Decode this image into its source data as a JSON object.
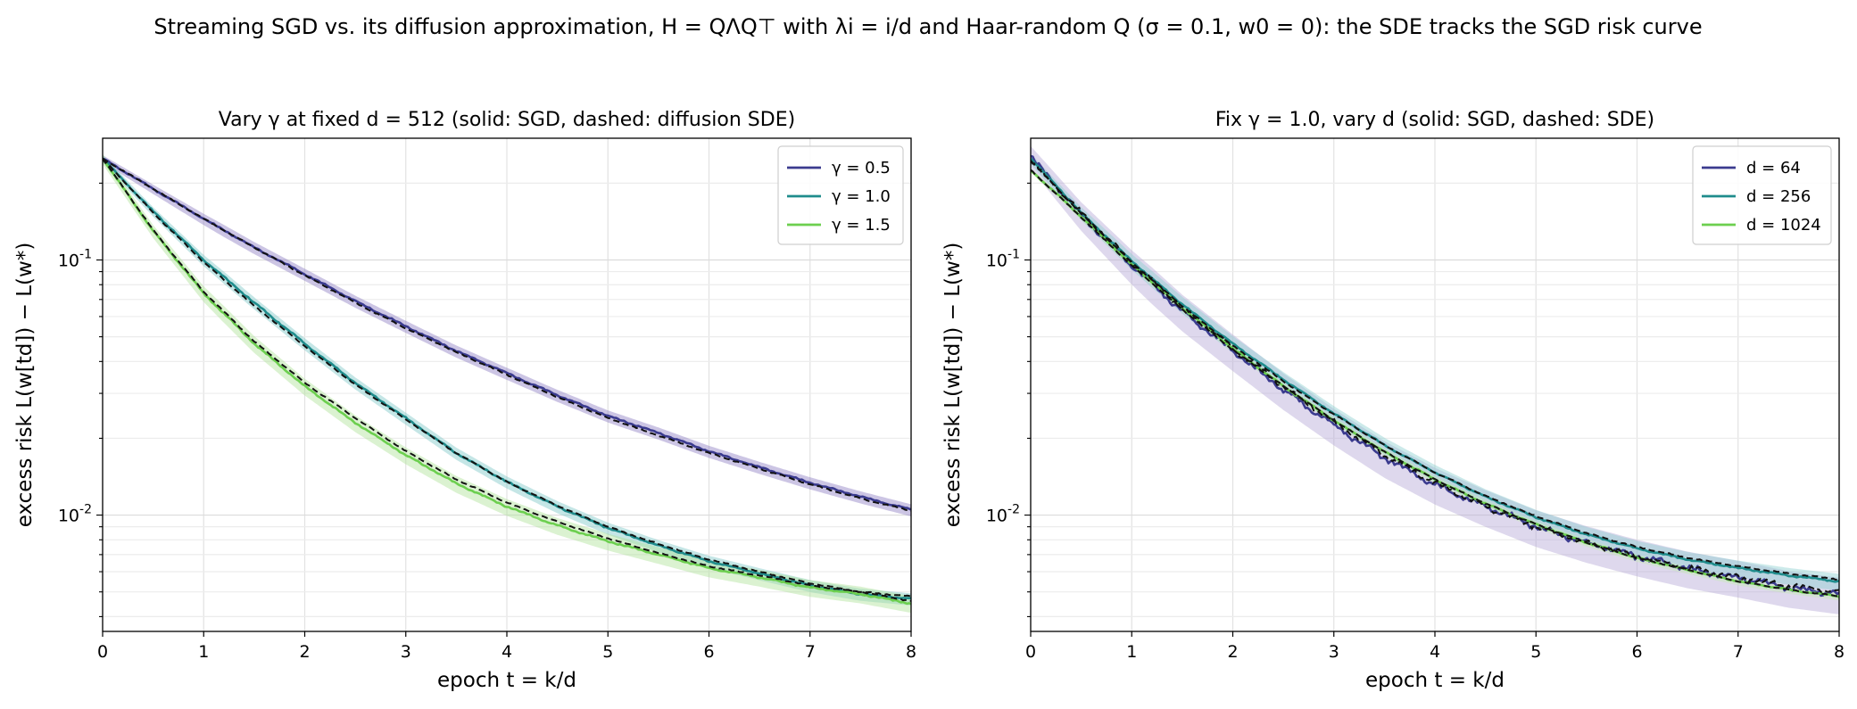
{
  "figure": {
    "suptitle": "Streaming SGD vs. its diffusion approximation, H = QΛQ⊤ with λi = i/d and Haar-random Q (σ = 0.1, w0 = 0): the SDE tracks the SGD risk curve"
  },
  "chart_data": [
    {
      "type": "line",
      "title": "Vary γ at fixed d = 512 (solid: SGD, dashed: diffusion SDE)",
      "xlabel": "epoch t = k/d",
      "ylabel": "excess risk L(w[td]) − L(w*)",
      "xlim": [
        0,
        8
      ],
      "ylim": [
        0.0035,
        0.3
      ],
      "yscale": "log",
      "grid": true,
      "legend_position": "top-right",
      "x_ticks": [
        "0",
        "1",
        "2",
        "3",
        "4",
        "5",
        "6",
        "7",
        "8"
      ],
      "y_ticks": [
        "10^-2",
        "10^-1"
      ],
      "series": [
        {
          "name": "γ = 0.5",
          "color": "#3b3b8f",
          "band_color": "#8f7fc4",
          "band": 0.05,
          "x": [
            0,
            0.5,
            1,
            1.5,
            2,
            2.5,
            3,
            3.5,
            4,
            4.5,
            5,
            5.5,
            6,
            6.5,
            7,
            7.5,
            8
          ],
          "sgd": [
            0.25,
            0.19,
            0.145,
            0.112,
            0.088,
            0.069,
            0.055,
            0.044,
            0.036,
            0.0295,
            0.0245,
            0.021,
            0.0178,
            0.0154,
            0.0134,
            0.0118,
            0.0105
          ],
          "sde": [
            0.25,
            0.19,
            0.145,
            0.112,
            0.087,
            0.068,
            0.054,
            0.0435,
            0.0355,
            0.029,
            0.024,
            0.0205,
            0.0175,
            0.0152,
            0.0132,
            0.0116,
            0.0104
          ]
        },
        {
          "name": "γ = 1.0",
          "color": "#1f8c8c",
          "band_color": "#7fc8c8",
          "band": 0.05,
          "x": [
            0,
            0.5,
            1,
            1.5,
            2,
            2.5,
            3,
            3.5,
            4,
            4.5,
            5,
            5.5,
            6,
            6.5,
            7,
            7.5,
            8
          ],
          "sgd": [
            0.25,
            0.155,
            0.1,
            0.068,
            0.047,
            0.033,
            0.024,
            0.0175,
            0.0135,
            0.0108,
            0.0089,
            0.0076,
            0.0066,
            0.0059,
            0.0053,
            0.0049,
            0.0047
          ],
          "sde": [
            0.25,
            0.153,
            0.098,
            0.066,
            0.046,
            0.0325,
            0.0237,
            0.0175,
            0.0135,
            0.0109,
            0.009,
            0.0077,
            0.0067,
            0.006,
            0.0054,
            0.005,
            0.0048
          ]
        },
        {
          "name": "γ = 1.5",
          "color": "#6ccf4f",
          "band_color": "#b0e39a",
          "band": 0.07,
          "x": [
            0,
            0.5,
            1,
            1.5,
            2,
            2.5,
            3,
            3.5,
            4,
            4.5,
            5,
            5.5,
            6,
            6.5,
            7,
            7.5,
            8
          ],
          "sgd": [
            0.25,
            0.13,
            0.074,
            0.047,
            0.032,
            0.023,
            0.0172,
            0.0133,
            0.0108,
            0.0091,
            0.0079,
            0.007,
            0.0062,
            0.0057,
            0.0052,
            0.0049,
            0.0045
          ],
          "sde": [
            0.25,
            0.131,
            0.075,
            0.048,
            0.033,
            0.024,
            0.0178,
            0.0138,
            0.0112,
            0.0094,
            0.0081,
            0.0071,
            0.0063,
            0.0058,
            0.0053,
            0.005,
            0.0046
          ]
        }
      ]
    },
    {
      "type": "line",
      "title": "Fix γ = 1.0, vary d (solid: SGD, dashed: SDE)",
      "xlabel": "epoch t = k/d",
      "ylabel": "excess risk L(w[td]) − L(w*)",
      "xlim": [
        0,
        8
      ],
      "ylim": [
        0.0035,
        0.3
      ],
      "yscale": "log",
      "grid": true,
      "legend_position": "top-right",
      "x_ticks": [
        "0",
        "1",
        "2",
        "3",
        "4",
        "5",
        "6",
        "7",
        "8"
      ],
      "y_ticks": [
        "10^-2",
        "10^-1"
      ],
      "series": [
        {
          "name": "d = 64",
          "color": "#3b3b8f",
          "band_color": "#b5a8d8",
          "band": 0.16,
          "x": [
            0,
            0.5,
            1,
            1.5,
            2,
            2.5,
            3,
            3.5,
            4,
            4.5,
            5,
            5.5,
            6,
            6.5,
            7,
            7.5,
            8
          ],
          "sgd": [
            0.255,
            0.15,
            0.095,
            0.063,
            0.044,
            0.031,
            0.0225,
            0.0168,
            0.0132,
            0.0108,
            0.009,
            0.0078,
            0.0069,
            0.0062,
            0.0057,
            0.0052,
            0.0049
          ],
          "sde": [
            0.245,
            0.153,
            0.098,
            0.065,
            0.045,
            0.032,
            0.0232,
            0.0172,
            0.0134,
            0.0108,
            0.009,
            0.0078,
            0.0069,
            0.0062,
            0.0057,
            0.0053,
            0.005
          ]
        },
        {
          "name": "d = 256",
          "color": "#1f8c8c",
          "band_color": "#8fd0d0",
          "band": 0.07,
          "x": [
            0,
            0.5,
            1,
            1.5,
            2,
            2.5,
            3,
            3.5,
            4,
            4.5,
            5,
            5.5,
            6,
            6.5,
            7,
            7.5,
            8
          ],
          "sgd": [
            0.25,
            0.153,
            0.099,
            0.067,
            0.047,
            0.034,
            0.025,
            0.0188,
            0.0147,
            0.0118,
            0.0098,
            0.0084,
            0.0074,
            0.0067,
            0.0062,
            0.0058,
            0.0055
          ],
          "sde": [
            0.245,
            0.152,
            0.098,
            0.066,
            0.046,
            0.0335,
            0.0248,
            0.0188,
            0.0147,
            0.0119,
            0.0099,
            0.0085,
            0.0075,
            0.0068,
            0.0063,
            0.0059,
            0.0056
          ]
        },
        {
          "name": "d = 1024",
          "color": "#6ccf4f",
          "band_color": "#c5eab5",
          "band": 0.03,
          "x": [
            0,
            0.5,
            1,
            1.5,
            2,
            2.5,
            3,
            3.5,
            4,
            4.5,
            5,
            5.5,
            6,
            6.5,
            7,
            7.5,
            8
          ],
          "sgd": [
            0.225,
            0.148,
            0.096,
            0.065,
            0.045,
            0.032,
            0.0235,
            0.0177,
            0.0138,
            0.0111,
            0.0092,
            0.0078,
            0.0068,
            0.0061,
            0.0055,
            0.0051,
            0.0048
          ],
          "sde": [
            0.225,
            0.147,
            0.095,
            0.064,
            0.0445,
            0.032,
            0.0235,
            0.0177,
            0.0138,
            0.0111,
            0.0092,
            0.0078,
            0.0068,
            0.0061,
            0.0055,
            0.0051,
            0.0048
          ]
        }
      ]
    }
  ]
}
